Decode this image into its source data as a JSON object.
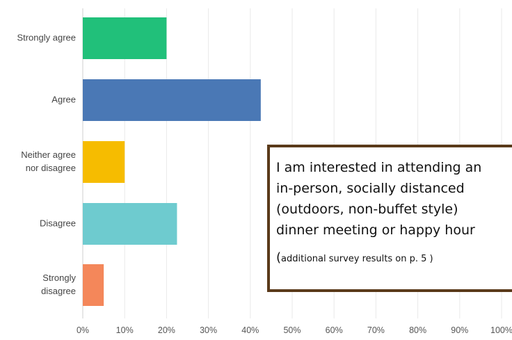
{
  "chart_data": {
    "type": "bar",
    "orientation": "horizontal",
    "categories": [
      [
        "Strongly agree"
      ],
      [
        "Agree"
      ],
      [
        "Neither agree",
        "nor disagree"
      ],
      [
        "Disagree"
      ],
      [
        "Strongly",
        "disagree"
      ]
    ],
    "values": [
      20,
      42.5,
      10,
      22.5,
      5
    ],
    "colors": [
      "#21c07a",
      "#4a78b5",
      "#f6bc00",
      "#6ecbcf",
      "#f4875a"
    ],
    "xlim": [
      0,
      100
    ],
    "x_ticks": [
      "0%",
      "10%",
      "20%",
      "30%",
      "40%",
      "50%",
      "60%",
      "70%",
      "80%",
      "90%",
      "100%"
    ],
    "grid": "vertical",
    "title": "",
    "xlabel": "",
    "ylabel": ""
  },
  "annotation": {
    "lines": [
      "I am interested in attending an",
      "in-person, socially distanced",
      "(outdoors, non-buffet style)",
      "dinner meeting or happy hour"
    ],
    "note_open": "(",
    "note_text": "additional survey results on p. 5 )"
  }
}
